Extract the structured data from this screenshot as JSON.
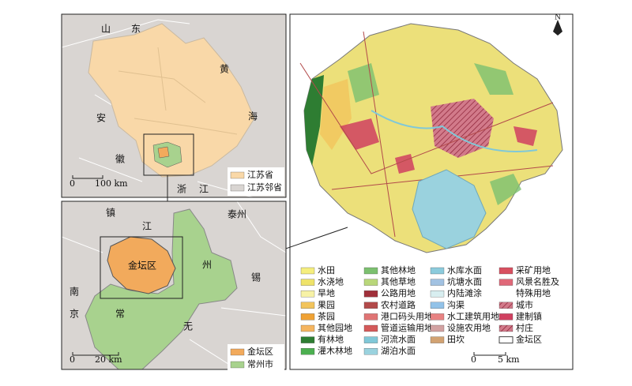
{
  "top_map": {
    "labels": [
      "山",
      "东",
      "黄",
      "海",
      "安",
      "徽",
      "浙",
      "江"
    ],
    "scale": {
      "zero": "0",
      "length": "100 km"
    },
    "legend": [
      {
        "name": "江苏省",
        "color": "#f9d8a8"
      },
      {
        "name": "江苏邻省",
        "color": "#d9d5d2"
      }
    ]
  },
  "bottom_map": {
    "labels": [
      "镇",
      "江",
      "泰州",
      "金坛区",
      "州",
      "南",
      "京",
      "常",
      "无",
      "锡"
    ],
    "scale": {
      "zero": "0",
      "length": "20 km"
    },
    "legend": [
      {
        "name": "金坛区",
        "color": "#f2aa5c"
      },
      {
        "name": "常州市",
        "color": "#a8d28e"
      }
    ]
  },
  "main_map": {
    "north": "N",
    "scale": {
      "zero": "0",
      "length": "5 km"
    },
    "legend_columns": [
      [
        {
          "name": "水田",
          "color": "#f5ee7e"
        },
        {
          "name": "水浇地",
          "color": "#efe36a"
        },
        {
          "name": "旱地",
          "color": "#f7f2a6"
        },
        {
          "name": "果园",
          "color": "#f2c45c"
        },
        {
          "name": "茶园",
          "color": "#f0a234"
        },
        {
          "name": "其他园地",
          "color": "#f5b560"
        },
        {
          "name": "有林地",
          "color": "#2e7d32"
        },
        {
          "name": "灌木林地",
          "color": "#4caf50"
        }
      ],
      [
        {
          "name": "其他林地",
          "color": "#7cc070"
        },
        {
          "name": "其他草地",
          "color": "#b9d77a"
        },
        {
          "name": "公路用地",
          "color": "#a0303a"
        },
        {
          "name": "农村道路",
          "color": "#b24a4a"
        },
        {
          "name": "港口码头用地",
          "color": "#e07474"
        },
        {
          "name": "管道运输用地",
          "color": "#d45a5a"
        },
        {
          "name": "河流水面",
          "color": "#80c8d8"
        },
        {
          "name": "湖泊水面",
          "color": "#9ad2de"
        }
      ],
      [
        {
          "name": "水库水面",
          "color": "#8ccbdc"
        },
        {
          "name": "坑塘水面",
          "color": "#a2c2e2"
        },
        {
          "name": "内陆滩涂",
          "color": "#d8eef0"
        },
        {
          "name": "沟渠",
          "color": "#92c2e8"
        },
        {
          "name": "水工建筑用地",
          "color": "#e88282"
        },
        {
          "name": "设施农用地",
          "color": "#d2a2a2"
        },
        {
          "name": "田坎",
          "color": "#d2a272"
        }
      ],
      [
        {
          "name": "采矿用地",
          "color": "#d85060"
        },
        {
          "lines": [
            "风景名胜及",
            "特殊用地"
          ],
          "color": "#e06878"
        },
        {
          "name": "城市",
          "color": "#c84a62",
          "hatch": true
        },
        {
          "name": "建制镇",
          "color": "#d04060"
        },
        {
          "name": "村庄",
          "color": "#f0a0b0",
          "hatch": true
        },
        {
          "name": "金坛区",
          "color": "#ffffff"
        }
      ]
    ]
  }
}
